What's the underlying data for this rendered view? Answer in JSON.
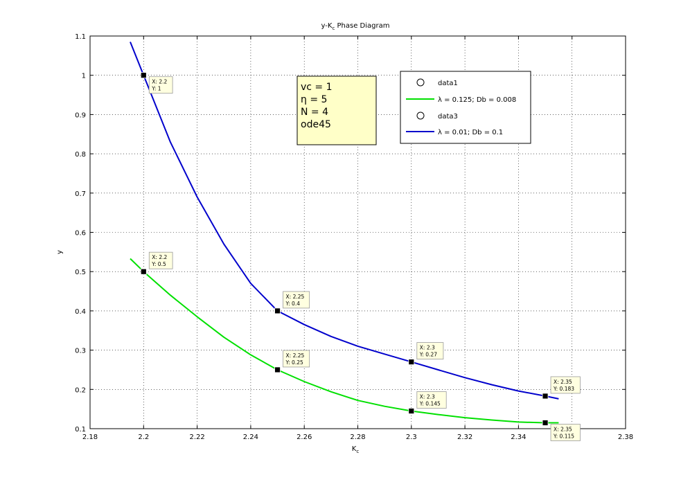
{
  "chart_data": {
    "type": "line",
    "title": {
      "main": "y-K",
      "sub": "c",
      "rest": " Phase Diagram"
    },
    "xlabel": {
      "main": "K",
      "sub": "c"
    },
    "ylabel": "y",
    "xlim": [
      2.18,
      2.38
    ],
    "ylim": [
      0.1,
      1.1
    ],
    "grid": true,
    "xticks": [
      2.18,
      2.2,
      2.22,
      2.24,
      2.26,
      2.28,
      2.3,
      2.32,
      2.34,
      2.36,
      2.38
    ],
    "xtick_labels": [
      "2.18",
      "2.2",
      "2.22",
      "2.24",
      "2.26",
      "2.28",
      "2.3",
      "2.32",
      "2.34",
      "2.36",
      "2.38"
    ],
    "yticks": [
      0.1,
      0.2,
      0.3,
      0.4,
      0.5,
      0.6,
      0.7,
      0.8,
      0.9,
      1.0,
      1.1
    ],
    "ytick_labels": [
      "0.1",
      "0.2",
      "0.3",
      "0.4",
      "0.5",
      "0.6",
      "0.7",
      "0.8",
      "0.9",
      "1",
      "1.1"
    ],
    "legend_position": "top-right",
    "series": [
      {
        "name": "data1",
        "kind": "marker",
        "color": "#000000",
        "x": [
          2.2,
          2.25,
          2.3,
          2.35
        ],
        "y": [
          0.5,
          0.25,
          0.145,
          0.115
        ]
      },
      {
        "name": "λ = 0.125; Db = 0.008",
        "kind": "line",
        "color": "#00e000",
        "x": [
          2.195,
          2.2,
          2.21,
          2.22,
          2.23,
          2.24,
          2.25,
          2.26,
          2.27,
          2.28,
          2.29,
          2.3,
          2.31,
          2.32,
          2.33,
          2.34,
          2.35,
          2.355
        ],
        "y": [
          0.533,
          0.5,
          0.44,
          0.385,
          0.333,
          0.288,
          0.25,
          0.22,
          0.194,
          0.172,
          0.157,
          0.145,
          0.136,
          0.128,
          0.122,
          0.117,
          0.115,
          0.115
        ]
      },
      {
        "name": "data3",
        "kind": "marker",
        "color": "#000000",
        "x": [
          2.2,
          2.25,
          2.3,
          2.35
        ],
        "y": [
          1.0,
          0.4,
          0.27,
          0.183
        ]
      },
      {
        "name": "λ = 0.01; Db = 0.1",
        "kind": "line",
        "color": "#0000cc",
        "x": [
          2.195,
          2.2,
          2.21,
          2.22,
          2.23,
          2.24,
          2.25,
          2.26,
          2.27,
          2.28,
          2.29,
          2.3,
          2.31,
          2.32,
          2.33,
          2.34,
          2.35,
          2.355
        ],
        "y": [
          1.085,
          1.0,
          0.83,
          0.69,
          0.57,
          0.47,
          0.4,
          0.365,
          0.335,
          0.31,
          0.29,
          0.27,
          0.25,
          0.23,
          0.212,
          0.196,
          0.183,
          0.176
        ]
      }
    ],
    "datatips": [
      {
        "x": 2.2,
        "y": 1.0,
        "line1": "X: 2.2",
        "line2": "Y: 1"
      },
      {
        "x": 2.2,
        "y": 0.5,
        "line1": "X: 2.2",
        "line2": "Y: 0.5"
      },
      {
        "x": 2.25,
        "y": 0.4,
        "line1": "X: 2.25",
        "line2": "Y: 0.4"
      },
      {
        "x": 2.25,
        "y": 0.25,
        "line1": "X: 2.25",
        "line2": "Y: 0.25"
      },
      {
        "x": 2.3,
        "y": 0.27,
        "line1": "X: 2.3",
        "line2": "Y: 0.27"
      },
      {
        "x": 2.3,
        "y": 0.145,
        "line1": "X: 2.3",
        "line2": "Y: 0.145"
      },
      {
        "x": 2.35,
        "y": 0.183,
        "line1": "X: 2.35",
        "line2": "Y: 0.183"
      },
      {
        "x": 2.35,
        "y": 0.115,
        "line1": "X: 2.35",
        "line2": "Y: 0.115"
      }
    ],
    "annotation_lines": [
      {
        "text": "vc = 1"
      },
      {
        "sym": "η",
        "text": " = 5"
      },
      {
        "text": "N = 4"
      },
      {
        "text": "ode45"
      }
    ],
    "colors": {
      "background": "#ffffff",
      "axes": "#000000",
      "grid": "#000000",
      "annotation_fill": "#ffffc8",
      "datatip_fill": "#ffffe0"
    }
  }
}
